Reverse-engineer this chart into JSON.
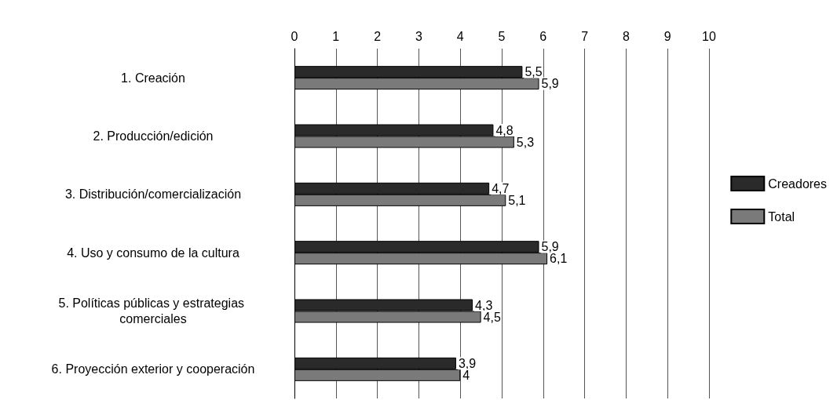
{
  "chart_data": {
    "type": "bar",
    "orientation": "horizontal",
    "categories": [
      "1. Creación",
      "2. Producción/edición",
      "3. Distribución/comercialización",
      "4. Uso y consumo de la cultura",
      "5. Políticas públicas y estrategias comerciales",
      "6. Proyección exterior y cooperación"
    ],
    "series": [
      {
        "name": "Creadores",
        "color": "#2a2a2a",
        "values": [
          5.5,
          4.8,
          4.7,
          5.9,
          4.3,
          3.9
        ],
        "value_labels": [
          "5,5",
          "4,8",
          "4,7",
          "5,9",
          "4,3",
          "3,9"
        ]
      },
      {
        "name": "Total",
        "color": "#7a7a7a",
        "values": [
          5.9,
          5.3,
          5.1,
          6.1,
          4.5,
          4
        ],
        "value_labels": [
          "5,9",
          "5,3",
          "5,1",
          "6,1",
          "4,5",
          "4"
        ]
      }
    ],
    "xlim": [
      0,
      10
    ],
    "xticks": [
      0,
      1,
      2,
      3,
      4,
      5,
      6,
      7,
      8,
      9,
      10
    ],
    "grid": "x",
    "legend": "right"
  }
}
